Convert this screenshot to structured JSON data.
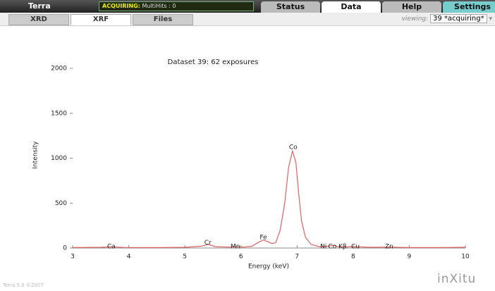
{
  "header": {
    "app_name": "Terra",
    "status_label": "ACQUIRING:",
    "status_text": "MultiHits : 0",
    "tabs": [
      "Status",
      "Data",
      "Help",
      "Settings"
    ],
    "active_tab": "Data"
  },
  "subheader": {
    "tabs": [
      "XRD",
      "XRF",
      "Files"
    ],
    "active_tab": "XRF",
    "viewing_label": "viewing:",
    "viewing_value": "39 *acquiring*"
  },
  "chart_data": {
    "type": "line",
    "title": "Dataset 39: 62 exposures",
    "x_label": "Energy (keV)",
    "y_label": "Intensity",
    "x": [
      3.0,
      3.5,
      3.69,
      3.9,
      4.5,
      5.0,
      5.3,
      5.41,
      5.55,
      5.8,
      5.9,
      6.05,
      6.2,
      6.3,
      6.4,
      6.48,
      6.55,
      6.62,
      6.7,
      6.78,
      6.85,
      6.92,
      6.98,
      7.03,
      7.08,
      7.15,
      7.25,
      7.4,
      7.55,
      7.65,
      7.75,
      8.05,
      8.3,
      8.64,
      9.0,
      9.5,
      10.0
    ],
    "values": [
      5,
      8,
      15,
      6,
      5,
      8,
      20,
      40,
      15,
      10,
      15,
      10,
      20,
      60,
      90,
      70,
      50,
      60,
      200,
      500,
      900,
      1080,
      950,
      600,
      300,
      120,
      40,
      15,
      20,
      30,
      12,
      15,
      8,
      10,
      5,
      5,
      8
    ],
    "color": "#e06060",
    "xlim": [
      3,
      10
    ],
    "xticks": [
      3,
      4,
      5,
      6,
      7,
      8,
      9,
      10
    ],
    "ylim": [
      0,
      2000
    ],
    "yticks": [
      0,
      500,
      1000,
      1500,
      2000
    ],
    "annotations": [
      {
        "label": "Ca",
        "x": 3.69,
        "y": 15
      },
      {
        "label": "Cr",
        "x": 5.41,
        "y": 60
      },
      {
        "label": "Mn",
        "x": 5.9,
        "y": 15
      },
      {
        "label": "Fe",
        "x": 6.4,
        "y": 118
      },
      {
        "label": "Co",
        "x": 6.93,
        "y": 1120
      },
      {
        "label": "Ni",
        "x": 7.47,
        "y": 15
      },
      {
        "label": "Co Kβ",
        "x": 7.72,
        "y": 15
      },
      {
        "label": "Cu",
        "x": 8.04,
        "y": 15
      },
      {
        "label": "Zn",
        "x": 8.64,
        "y": 15
      }
    ]
  },
  "footer": {
    "version": "Terra 5.0 ©2007",
    "logo": "inXitu"
  }
}
